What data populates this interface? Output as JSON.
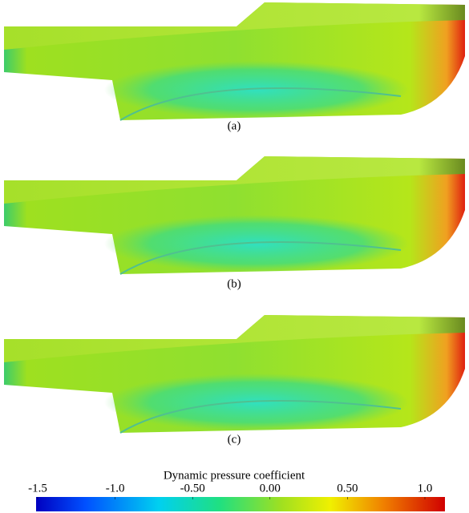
{
  "panels": [
    {
      "label": "(a)"
    },
    {
      "label": "(b)"
    },
    {
      "label": "(c)"
    }
  ],
  "colorbar": {
    "title": "Dynamic pressure coefficient",
    "range": [
      -1.5,
      1.0
    ],
    "ticks": [
      {
        "value": -1.5,
        "label": "-1.5"
      },
      {
        "value": -1.0,
        "label": "-1.0"
      },
      {
        "value": -0.5,
        "label": "-0.50"
      },
      {
        "value": 0,
        "label": "0.00"
      },
      {
        "value": 0.5,
        "label": "0.50"
      },
      {
        "value": 1.0,
        "label": "1.0"
      }
    ]
  }
}
